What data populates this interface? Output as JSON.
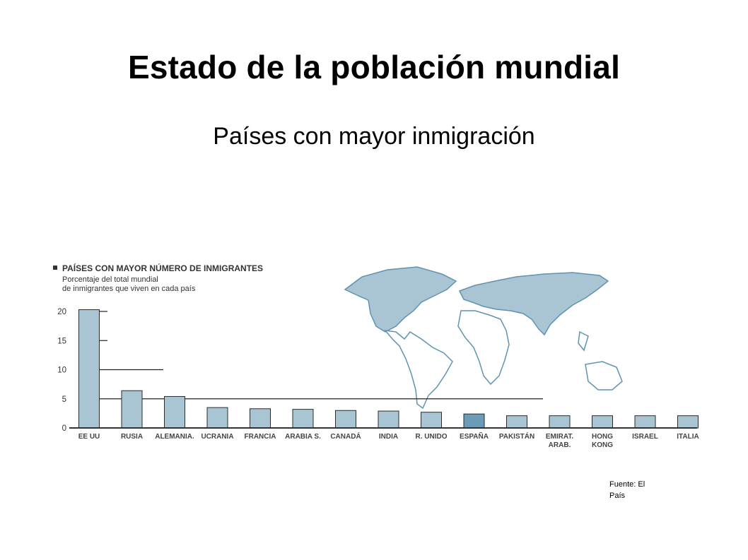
{
  "slide": {
    "title": "Estado de la población mundial",
    "subtitle": "Países con mayor inmigración",
    "source": "Fuente: El País"
  },
  "chart_data": {
    "type": "bar",
    "title": "PAÍSES CON MAYOR NÚMERO DE INMIGRANTES",
    "subtitle_lines": [
      "Porcentaje del total mundial",
      "de inmigrantes que viven en cada país"
    ],
    "categories": [
      [
        "EE UU"
      ],
      [
        "RUSIA"
      ],
      [
        "ALEMANIA."
      ],
      [
        "UCRANIA"
      ],
      [
        "FRANCIA"
      ],
      [
        "ARABIA S."
      ],
      [
        "CANADÁ"
      ],
      [
        "INDIA"
      ],
      [
        "R. UNIDO"
      ],
      [
        "ESPAÑA"
      ],
      [
        "PAKISTÁN"
      ],
      [
        "EMIRAT.",
        "ARAB."
      ],
      [
        "HONG",
        "KONG"
      ],
      [
        "ISRAEL"
      ],
      [
        "ITALIA"
      ]
    ],
    "values": [
      20.3,
      6.4,
      5.4,
      3.5,
      3.3,
      3.2,
      3.0,
      2.9,
      2.7,
      2.4,
      2.1,
      2.1,
      2.1,
      2.1,
      2.1
    ],
    "highlight_index": 9,
    "y_ticks": [
      0,
      5,
      10,
      15,
      20
    ],
    "ylim": [
      0,
      21
    ],
    "colors": {
      "bar": "#a9c4d3",
      "highlight": "#6a9cb8",
      "outline": "#2b2b2b",
      "map_fill": "#a9c4d3",
      "map_stroke": "#5f93b0"
    }
  }
}
